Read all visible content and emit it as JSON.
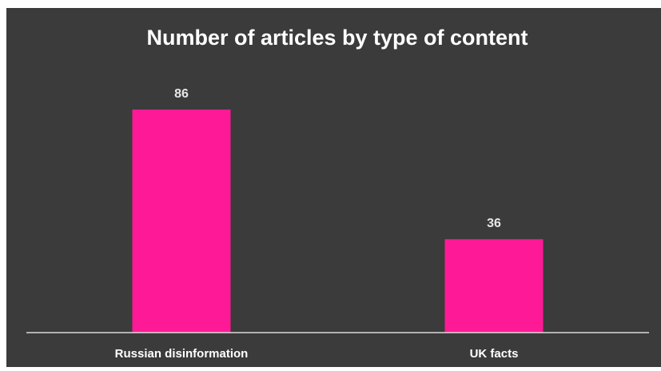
{
  "chart_data": {
    "type": "bar",
    "title": "Number of articles by type of content",
    "categories": [
      "Russian disinformation",
      "UK facts"
    ],
    "values": [
      86,
      36
    ],
    "xlabel": "",
    "ylabel": "",
    "ylim": [
      0,
      86
    ],
    "grid": false,
    "legend": "none",
    "data_labels": true
  },
  "colors": {
    "background": "#3b3b3b",
    "bar": "#fe1a96",
    "text": "#ffffff",
    "label_text": "#e6e6e6",
    "axis_line": "#d9d9d9",
    "frame_edge": "#ffffff"
  }
}
